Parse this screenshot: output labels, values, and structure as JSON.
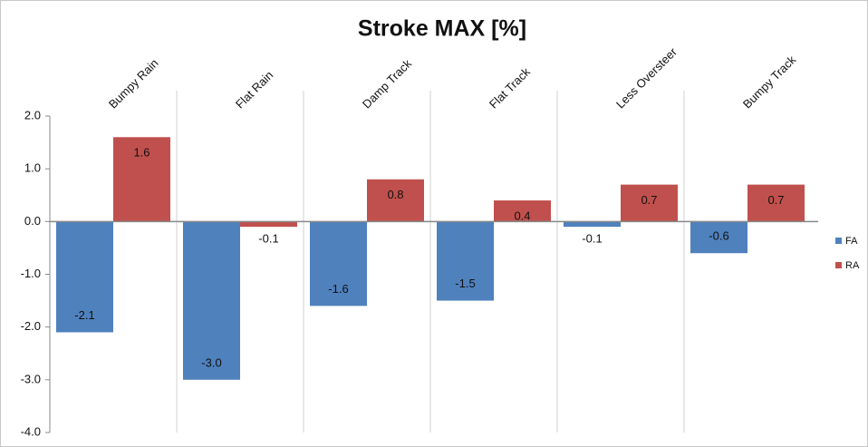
{
  "chart_data": {
    "type": "bar",
    "title": "Stroke MAX [%]",
    "categories": [
      "Bumpy Rain",
      "Flat Rain",
      "Damp Track",
      "Flat Track",
      "Less Oversteer",
      "Bumpy Track"
    ],
    "series": [
      {
        "name": "FA",
        "color": "#4f81bd",
        "values": [
          -2.1,
          -3.0,
          -1.6,
          -1.5,
          -0.1,
          -0.6
        ],
        "value_labels": [
          "-2.1",
          "-3.0",
          "-1.6",
          "-1.5",
          "-0.1",
          "-0.6"
        ]
      },
      {
        "name": "RA",
        "color": "#c0504d",
        "values": [
          1.6,
          -0.1,
          0.8,
          0.4,
          0.7,
          0.7
        ],
        "value_labels": [
          "1.6",
          "-0.1",
          "0.8",
          "0.4",
          "0.7",
          "0.7"
        ]
      }
    ],
    "ylim": [
      -4,
      2
    ],
    "yticks": [
      {
        "value": 2,
        "label": "2.0"
      },
      {
        "value": 1,
        "label": "1.0"
      },
      {
        "value": 0,
        "label": "0.0"
      },
      {
        "value": -1,
        "label": "-1.0"
      },
      {
        "value": -2,
        "label": "-2.0"
      },
      {
        "value": -3,
        "label": "-3.0"
      },
      {
        "value": -4,
        "label": "-4.0"
      }
    ],
    "grid": true,
    "legend": "right"
  }
}
